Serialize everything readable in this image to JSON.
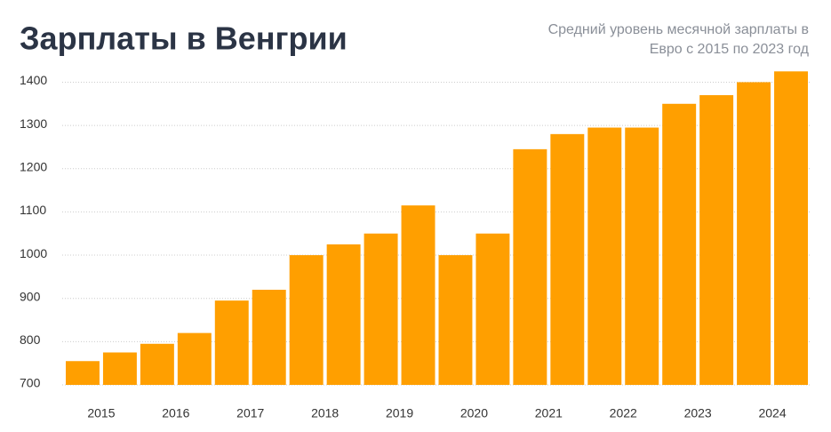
{
  "chart_data": {
    "type": "bar",
    "title": "Зарплаты в Венгрии",
    "subtitle": [
      "Средний уровень месячной зарплаты в",
      "Евро с 2015 по 2023 год"
    ],
    "categories": [
      "2015",
      null,
      "2016",
      null,
      "2017",
      null,
      "2018",
      null,
      "2019",
      null,
      "2020",
      null,
      "2021",
      null,
      "2022",
      null,
      "2023",
      null,
      "2024",
      null
    ],
    "values": [
      755,
      775,
      795,
      820,
      895,
      920,
      1000,
      1025,
      1050,
      1115,
      1000,
      1050,
      1245,
      1280,
      1295,
      1295,
      1350,
      1370,
      1400,
      1425
    ],
    "color": "#ff9f00",
    "ylim": [
      700,
      1440
    ],
    "yticks": [
      700,
      800,
      900,
      1000,
      1100,
      1200,
      1300,
      1400
    ],
    "grid": true
  }
}
